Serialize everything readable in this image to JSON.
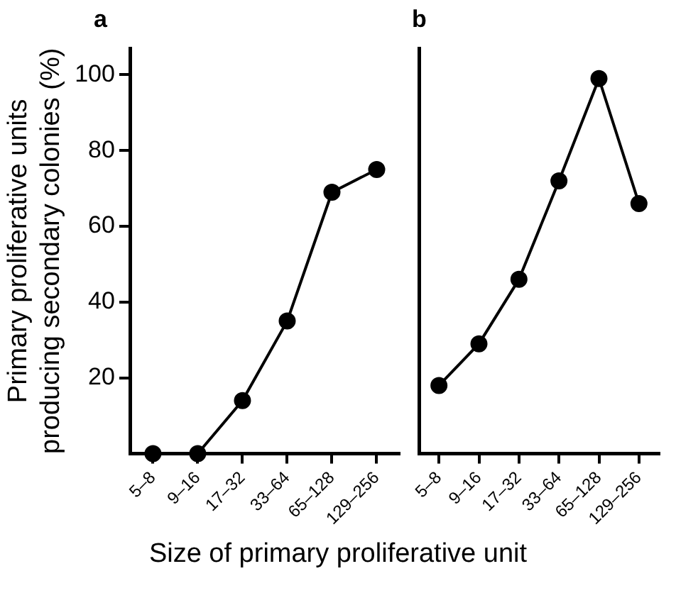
{
  "chart_data": [
    {
      "type": "line",
      "title": "a",
      "xlabel": "Size of primary proliferative unit",
      "ylabel": "Primary proliferative units producing secondary colonies (%)",
      "categories": [
        "5–8",
        "9–16",
        "17–32",
        "33–64",
        "65–128",
        "129–256"
      ],
      "values": [
        0,
        0,
        14,
        35,
        69,
        75
      ],
      "color": "#000000",
      "ylim": [
        0,
        107
      ],
      "yticks": [
        20,
        40,
        60,
        80,
        100
      ],
      "marker": "circle"
    },
    {
      "type": "line",
      "title": "b",
      "categories": [
        "5–8",
        "9–16",
        "17–32",
        "33–64",
        "65–128",
        "129–256"
      ],
      "values": [
        18,
        29,
        46,
        72,
        99,
        66
      ],
      "color": "#000000",
      "ylim": [
        0,
        107
      ],
      "yticks": [
        20,
        40,
        60,
        80,
        100
      ],
      "marker": "circle",
      "tick_labels": "x"
    }
  ]
}
